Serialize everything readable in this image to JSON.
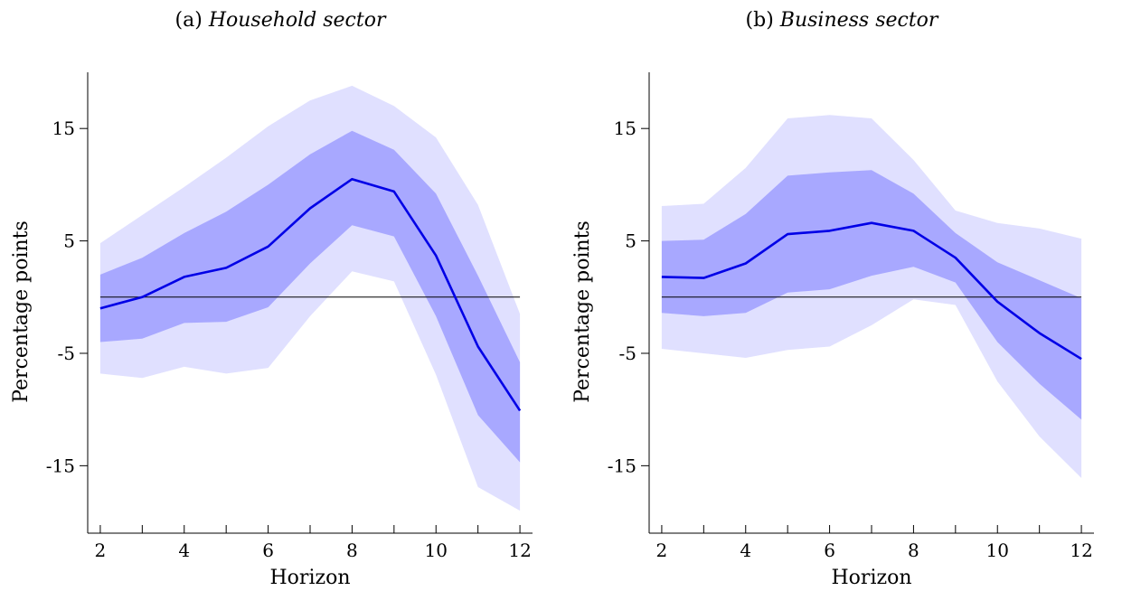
{
  "chart_data": [
    {
      "type": "line",
      "panel_letter": "(a)",
      "title": "Household sector",
      "xlabel": "Horizon",
      "ylabel": "Percentage points",
      "x": [
        2,
        3,
        4,
        5,
        6,
        7,
        8,
        9,
        10,
        11,
        12
      ],
      "xticks": [
        2,
        4,
        6,
        8,
        10,
        12
      ],
      "yticks": [
        -15,
        -5,
        5,
        15
      ],
      "xlim": [
        1.7,
        12.3
      ],
      "ylim": [
        -21,
        20
      ],
      "zero_line": 0,
      "series": [
        {
          "role": "point_estimate",
          "color": "#0000e6",
          "values": [
            -1.0,
            0.0,
            1.8,
            2.6,
            4.5,
            7.9,
            10.5,
            9.4,
            3.7,
            -4.4,
            -10.1
          ]
        },
        {
          "role": "inner_band",
          "color": "#a8a8ff",
          "lower": [
            -4.0,
            -3.7,
            -2.3,
            -2.2,
            -0.9,
            3.0,
            6.4,
            5.4,
            -1.7,
            -10.5,
            -14.7
          ],
          "upper": [
            2.0,
            3.5,
            5.7,
            7.6,
            10.0,
            12.7,
            14.8,
            13.1,
            9.2,
            1.9,
            -5.8
          ]
        },
        {
          "role": "outer_band",
          "color": "#e0e0ff",
          "lower": [
            -6.8,
            -7.2,
            -6.2,
            -6.8,
            -6.3,
            -1.7,
            2.3,
            1.4,
            -6.9,
            -16.9,
            -19.0
          ],
          "upper": [
            4.8,
            7.3,
            9.8,
            12.4,
            15.2,
            17.5,
            18.8,
            17.0,
            14.2,
            8.2,
            -1.5
          ]
        }
      ]
    },
    {
      "type": "line",
      "panel_letter": "(b)",
      "title": "Business sector",
      "xlabel": "Horizon",
      "ylabel": "Percentage points",
      "x": [
        2,
        3,
        4,
        5,
        6,
        7,
        8,
        9,
        10,
        11,
        12
      ],
      "xticks": [
        2,
        4,
        6,
        8,
        10,
        12
      ],
      "yticks": [
        -15,
        -5,
        5,
        15
      ],
      "xlim": [
        1.7,
        12.3
      ],
      "ylim": [
        -21,
        20
      ],
      "zero_line": 0,
      "series": [
        {
          "role": "point_estimate",
          "color": "#0000e6",
          "values": [
            1.8,
            1.7,
            3.0,
            5.6,
            5.9,
            6.6,
            5.9,
            3.5,
            -0.4,
            -3.2,
            -5.5
          ]
        },
        {
          "role": "inner_band",
          "color": "#a8a8ff",
          "lower": [
            -1.4,
            -1.7,
            -1.4,
            0.4,
            0.7,
            1.9,
            2.7,
            1.3,
            -4.0,
            -7.7,
            -10.9
          ],
          "upper": [
            5.0,
            5.1,
            7.4,
            10.8,
            11.1,
            11.3,
            9.2,
            5.7,
            3.1,
            1.5,
            -0.1
          ]
        },
        {
          "role": "outer_band",
          "color": "#e0e0ff",
          "lower": [
            -4.6,
            -5.0,
            -5.4,
            -4.7,
            -4.4,
            -2.5,
            -0.2,
            -0.7,
            -7.5,
            -12.4,
            -16.1
          ],
          "upper": [
            8.1,
            8.3,
            11.5,
            15.9,
            16.2,
            15.9,
            12.2,
            7.7,
            6.6,
            6.1,
            5.2
          ]
        }
      ]
    }
  ]
}
